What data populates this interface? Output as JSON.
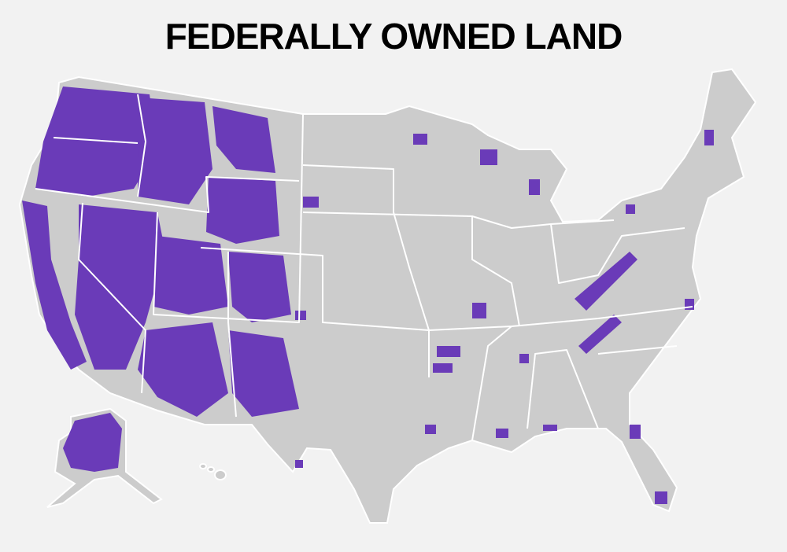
{
  "title": "FEDERALLY OWNED LAND"
}
